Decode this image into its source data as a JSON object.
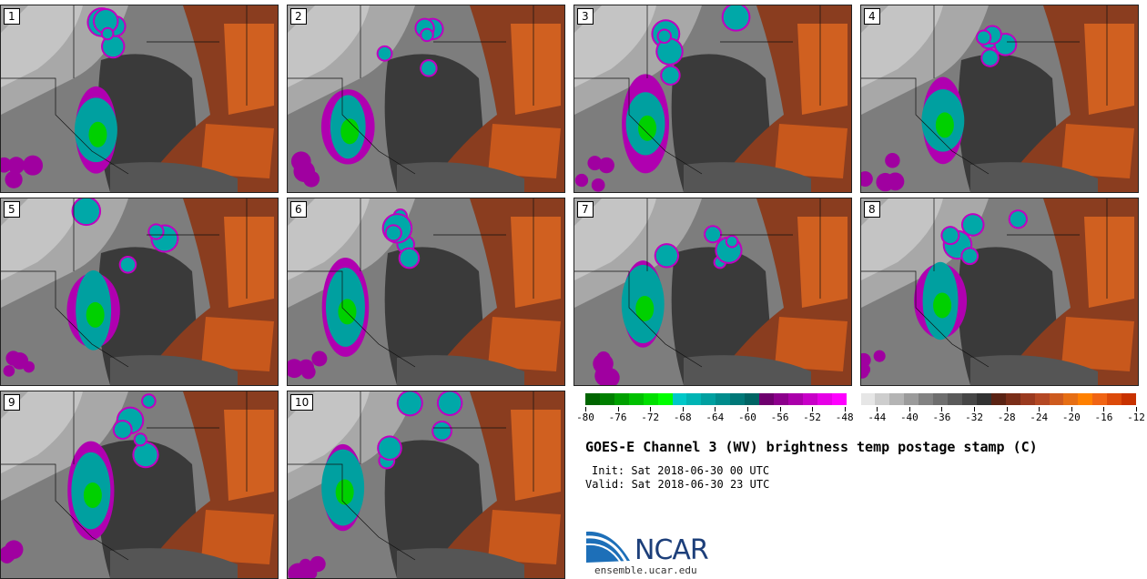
{
  "panels": [
    {
      "label": "1"
    },
    {
      "label": "2"
    },
    {
      "label": "3"
    },
    {
      "label": "4"
    },
    {
      "label": "5"
    },
    {
      "label": "6"
    },
    {
      "label": "7"
    },
    {
      "label": "8"
    },
    {
      "label": "9"
    },
    {
      "label": "10"
    }
  ],
  "colorbar": {
    "colors": [
      "#006400",
      "#007f00",
      "#00a000",
      "#00c000",
      "#00df00",
      "#00ff00",
      "#00c8c8",
      "#00b4b4",
      "#00a0a0",
      "#008c8c",
      "#007878",
      "#006464",
      "#6e006e",
      "#8c008c",
      "#aa00aa",
      "#c800c8",
      "#e600e6",
      "#ff00ff",
      "#ffffff",
      "#e6e6e6",
      "#cdcdcd",
      "#b4b4b4",
      "#9b9b9b",
      "#828282",
      "#6e6e6e",
      "#5a5a5a",
      "#464646",
      "#323232",
      "#5a2314",
      "#7a2e19",
      "#9a3a1f",
      "#b44824",
      "#cd5a1e",
      "#e66e14",
      "#ff8000",
      "#f06414",
      "#dc4a0a",
      "#c83200"
    ],
    "ticks": [
      "-80",
      "-76",
      "-72",
      "-68",
      "-64",
      "-60",
      "-56",
      "-52",
      "-48",
      "-44",
      "-40",
      "-36",
      "-32",
      "-28",
      "-24",
      "-20",
      "-16",
      "-12"
    ]
  },
  "title": "GOES-E Channel 3 (WV) brightness temp postage stamp (C)",
  "init": "Init: Sat 2018-06-30 00 UTC",
  "valid": "Valid: Sat 2018-06-30 23 UTC",
  "logo_text": "NCAR",
  "url": "ensemble.ucar.edu"
}
